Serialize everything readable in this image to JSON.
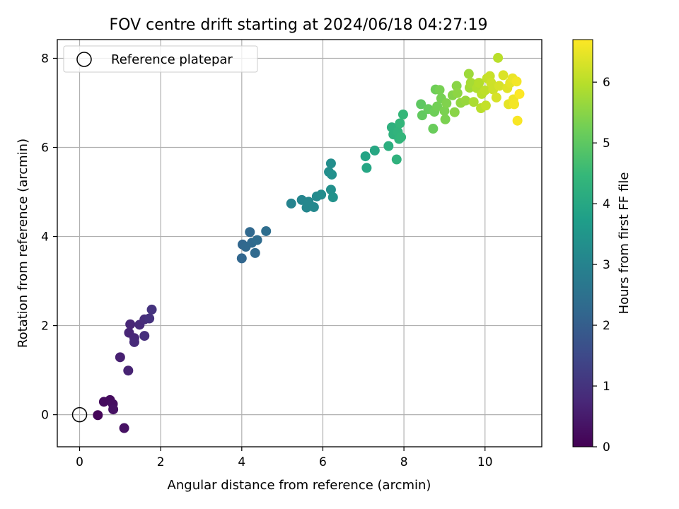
{
  "chart_data": {
    "type": "scatter",
    "title": "FOV centre drift starting at 2024/06/18 04:27:19",
    "xlabel": "Angular distance from reference (arcmin)",
    "ylabel": "Rotation from reference (arcmin)",
    "xlim": [
      -0.55,
      11.4
    ],
    "ylim": [
      -0.72,
      8.42
    ],
    "xticks": [
      0,
      2,
      4,
      6,
      8,
      10
    ],
    "yticks": [
      0,
      2,
      4,
      6,
      8
    ],
    "grid": true,
    "legend": {
      "entries": [
        "Reference platepar"
      ],
      "location": "upper-left"
    },
    "reference": {
      "name": "Reference platepar",
      "x": 0,
      "y": 0,
      "marker": "open-circle"
    },
    "colorbar": {
      "label": "Hours from first FF file",
      "min": 0,
      "max": 6.7,
      "ticks": [
        0,
        1,
        2,
        3,
        4,
        5,
        6
      ],
      "colormap": "viridis",
      "colors": [
        "#440154",
        "#482878",
        "#3e4989",
        "#31688e",
        "#26828e",
        "#1f9e89",
        "#35b779",
        "#6ece58",
        "#b5de2b",
        "#fde725"
      ]
    },
    "points": [
      {
        "x": 0.45,
        "y": -0.01,
        "h": 0.1
      },
      {
        "x": 0.6,
        "y": 0.29,
        "h": 0.2
      },
      {
        "x": 0.75,
        "y": 0.33,
        "h": 0.2
      },
      {
        "x": 0.82,
        "y": 0.24,
        "h": 0.25
      },
      {
        "x": 0.83,
        "y": 0.12,
        "h": 0.3
      },
      {
        "x": 1.1,
        "y": -0.3,
        "h": 0.3
      },
      {
        "x": 1.0,
        "y": 1.29,
        "h": 0.6
      },
      {
        "x": 1.2,
        "y": 0.99,
        "h": 0.65
      },
      {
        "x": 1.25,
        "y": 2.03,
        "h": 0.7
      },
      {
        "x": 1.22,
        "y": 1.84,
        "h": 0.7
      },
      {
        "x": 1.35,
        "y": 1.72,
        "h": 0.75
      },
      {
        "x": 1.35,
        "y": 1.63,
        "h": 0.8
      },
      {
        "x": 1.48,
        "y": 2.02,
        "h": 0.8
      },
      {
        "x": 1.6,
        "y": 2.14,
        "h": 0.85
      },
      {
        "x": 1.6,
        "y": 1.77,
        "h": 0.9
      },
      {
        "x": 1.72,
        "y": 2.16,
        "h": 0.95
      },
      {
        "x": 1.78,
        "y": 2.36,
        "h": 1.0
      },
      {
        "x": 4.0,
        "y": 3.51,
        "h": 2.2
      },
      {
        "x": 4.02,
        "y": 3.82,
        "h": 2.2
      },
      {
        "x": 4.1,
        "y": 3.77,
        "h": 2.25
      },
      {
        "x": 4.2,
        "y": 4.1,
        "h": 2.25
      },
      {
        "x": 4.25,
        "y": 3.86,
        "h": 2.3
      },
      {
        "x": 4.33,
        "y": 3.63,
        "h": 2.3
      },
      {
        "x": 4.38,
        "y": 3.92,
        "h": 2.35
      },
      {
        "x": 4.6,
        "y": 4.12,
        "h": 2.4
      },
      {
        "x": 5.22,
        "y": 4.74,
        "h": 3.0
      },
      {
        "x": 5.48,
        "y": 4.82,
        "h": 3.05
      },
      {
        "x": 5.6,
        "y": 4.65,
        "h": 3.1
      },
      {
        "x": 5.65,
        "y": 4.78,
        "h": 3.1
      },
      {
        "x": 5.78,
        "y": 4.66,
        "h": 3.15
      },
      {
        "x": 5.85,
        "y": 4.9,
        "h": 3.2
      },
      {
        "x": 5.96,
        "y": 4.94,
        "h": 3.25
      },
      {
        "x": 6.15,
        "y": 5.45,
        "h": 3.3
      },
      {
        "x": 6.2,
        "y": 5.64,
        "h": 3.3
      },
      {
        "x": 6.22,
        "y": 5.39,
        "h": 3.35
      },
      {
        "x": 6.2,
        "y": 5.05,
        "h": 3.35
      },
      {
        "x": 6.25,
        "y": 4.88,
        "h": 3.4
      },
      {
        "x": 7.05,
        "y": 5.8,
        "h": 3.9
      },
      {
        "x": 7.08,
        "y": 5.54,
        "h": 3.95
      },
      {
        "x": 7.28,
        "y": 5.93,
        "h": 4.0
      },
      {
        "x": 7.62,
        "y": 6.03,
        "h": 4.2
      },
      {
        "x": 7.7,
        "y": 6.45,
        "h": 4.25
      },
      {
        "x": 7.74,
        "y": 6.29,
        "h": 4.3
      },
      {
        "x": 7.82,
        "y": 5.73,
        "h": 4.3
      },
      {
        "x": 7.85,
        "y": 6.35,
        "h": 4.35
      },
      {
        "x": 7.88,
        "y": 6.19,
        "h": 4.35
      },
      {
        "x": 7.9,
        "y": 6.54,
        "h": 4.4
      },
      {
        "x": 7.93,
        "y": 6.23,
        "h": 4.4
      },
      {
        "x": 7.98,
        "y": 6.74,
        "h": 4.45
      },
      {
        "x": 8.42,
        "y": 6.97,
        "h": 5.0
      },
      {
        "x": 8.45,
        "y": 6.72,
        "h": 5.05
      },
      {
        "x": 8.6,
        "y": 6.86,
        "h": 5.1
      },
      {
        "x": 8.72,
        "y": 6.42,
        "h": 5.15
      },
      {
        "x": 8.75,
        "y": 6.8,
        "h": 5.2
      },
      {
        "x": 8.78,
        "y": 7.3,
        "h": 5.2
      },
      {
        "x": 8.82,
        "y": 6.92,
        "h": 5.25
      },
      {
        "x": 8.88,
        "y": 7.29,
        "h": 5.3
      },
      {
        "x": 8.92,
        "y": 7.1,
        "h": 5.3
      },
      {
        "x": 9.0,
        "y": 6.82,
        "h": 5.35
      },
      {
        "x": 9.02,
        "y": 6.63,
        "h": 5.35
      },
      {
        "x": 9.05,
        "y": 6.99,
        "h": 5.4
      },
      {
        "x": 9.2,
        "y": 7.17,
        "h": 5.45
      },
      {
        "x": 9.25,
        "y": 6.79,
        "h": 5.5
      },
      {
        "x": 9.3,
        "y": 7.38,
        "h": 5.5
      },
      {
        "x": 9.32,
        "y": 7.22,
        "h": 5.55
      },
      {
        "x": 9.4,
        "y": 7.0,
        "h": 5.6
      },
      {
        "x": 9.52,
        "y": 7.05,
        "h": 5.65
      },
      {
        "x": 9.6,
        "y": 7.65,
        "h": 5.7
      },
      {
        "x": 9.62,
        "y": 7.34,
        "h": 5.75
      },
      {
        "x": 9.65,
        "y": 7.45,
        "h": 5.8
      },
      {
        "x": 9.72,
        "y": 7.02,
        "h": 5.85
      },
      {
        "x": 9.8,
        "y": 7.33,
        "h": 5.9
      },
      {
        "x": 9.85,
        "y": 7.45,
        "h": 5.95
      },
      {
        "x": 9.9,
        "y": 6.88,
        "h": 6.0
      },
      {
        "x": 9.92,
        "y": 7.2,
        "h": 6.0
      },
      {
        "x": 10.0,
        "y": 7.28,
        "h": 6.05
      },
      {
        "x": 10.02,
        "y": 6.94,
        "h": 6.1
      },
      {
        "x": 10.05,
        "y": 7.55,
        "h": 6.1
      },
      {
        "x": 10.12,
        "y": 7.6,
        "h": 6.15
      },
      {
        "x": 10.15,
        "y": 7.45,
        "h": 6.2
      },
      {
        "x": 10.2,
        "y": 7.3,
        "h": 6.2
      },
      {
        "x": 10.28,
        "y": 7.12,
        "h": 6.3
      },
      {
        "x": 10.32,
        "y": 8.01,
        "h": 6.0
      },
      {
        "x": 10.35,
        "y": 7.38,
        "h": 6.3
      },
      {
        "x": 10.45,
        "y": 7.62,
        "h": 6.35
      },
      {
        "x": 10.55,
        "y": 7.33,
        "h": 6.4
      },
      {
        "x": 10.58,
        "y": 6.97,
        "h": 6.45
      },
      {
        "x": 10.62,
        "y": 7.45,
        "h": 6.45
      },
      {
        "x": 10.68,
        "y": 7.55,
        "h": 6.5
      },
      {
        "x": 10.7,
        "y": 7.08,
        "h": 6.55
      },
      {
        "x": 10.72,
        "y": 6.97,
        "h": 6.6
      },
      {
        "x": 10.78,
        "y": 7.48,
        "h": 6.6
      },
      {
        "x": 10.8,
        "y": 6.6,
        "h": 6.65
      },
      {
        "x": 10.85,
        "y": 7.2,
        "h": 6.7
      }
    ]
  }
}
